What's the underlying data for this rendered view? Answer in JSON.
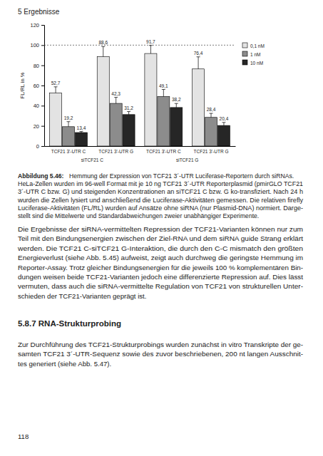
{
  "header": "5 Ergebnisse",
  "chart_data": {
    "type": "bar",
    "y_label": "FL/RL in %",
    "categories": [
      "TCF21 3'-UTR C",
      "TCF21 3'-UTR G",
      "TCF21 3'-UTR C",
      "TCF21 3'-UTR G"
    ],
    "group_labels": [
      "siTCF21 C",
      "siTCF21 G"
    ],
    "reference_line": 100,
    "ylim": [
      0,
      120
    ],
    "yticks": [
      0,
      20,
      40,
      60,
      80,
      100,
      120
    ],
    "data_labels": true,
    "legend": "right",
    "series": [
      {
        "name": "0,1 nM",
        "color": "#e3e3e3",
        "values": [
          52.7,
          88.6,
          91.7,
          76.4
        ],
        "value_labels": [
          "52,7",
          "88,6",
          "91,7",
          "76,4"
        ],
        "errors": [
          6,
          10,
          8,
          12
        ]
      },
      {
        "name": "1 nM",
        "color": "#8c8c8c",
        "values": [
          19.2,
          42.3,
          49.1,
          28.4
        ],
        "value_labels": [
          "19,2",
          "42,3",
          "49,1",
          "28,4"
        ],
        "errors": [
          5,
          6,
          7,
          4
        ]
      },
      {
        "name": "10 nM",
        "color": "#262626",
        "values": [
          13.4,
          31.2,
          38.2,
          20.4
        ],
        "value_labels": [
          "13,4",
          "31,2",
          "38,2",
          "20,4"
        ],
        "errors": [
          1,
          3,
          4,
          3
        ]
      }
    ]
  },
  "caption": {
    "label": "Abbildung 5.46:",
    "lines": [
      "Hemmung der Expression von TCF21 3´-UTR Luciferase-Reportern durch siRNAs.",
      "HeLa-Zellen wurden im 96-well Format mit je 10 ng TCF21 3´-UTR Reporterplasmid (pmirGLO TCF21",
      "3´-UTR C bzw. G) und steigenden Konzentrationen an siTCF21 C bzw. G ko-transfiziert. Nach 24 h",
      "wurden die Zellen lysiert und anschließend die Luciferase-Aktivitäten gemessen. Die relativen firefly",
      "Luciferase-Aktivitäten (FL/RL) wurden auf Ansätze ohne siRNA (nur Plasmid-DNA) normiert. Darge-",
      "stellt sind die Mittelwerte und Standardabweichungen zweier unabhängiger Experimente."
    ]
  },
  "paragraphs": [
    [
      "Die Ergebnisse der siRNA-vermittelten Repression der TCF21-Varianten können nur zum",
      "Teil mit den Bindungsenergien zwischen der Ziel-RNA und dem siRNA guide Strang erklärt",
      "werden. Die TCF21 C-siTCF21 G-Interaktion, die durch den C-C mismatch den größten",
      "Energieverlust (siehe Abb. 5.45) aufweist, zeigt auch durchweg die geringste Hemmung im",
      "Reporter-Assay. Trotz gleicher Bindungsenergien für die jeweils 100 % komplementären Bin-",
      "dungen weisen beide TCF21-Varianten jedoch eine differenzierte Repression auf. Dies lässt",
      "vermuten, dass auch die siRNA-vermittelte Regulation von TCF21 von strukturellen Unter-",
      "schieden der TCF21-Varianten geprägt ist."
    ]
  ],
  "section": {
    "heading": "5.8.7 RNA-Strukturprobing",
    "lines": [
      "Zur Durchführung des TCF21-Strukturprobings wurden zunächst in vitro Transkripte der ge-",
      "samten TCF21 3´-UTR-Sequenz sowie des zuvor beschriebenen, 200 nt langen Ausschnit-",
      "tes generiert (siehe Abb. 5.47)."
    ]
  },
  "page_number": "118"
}
